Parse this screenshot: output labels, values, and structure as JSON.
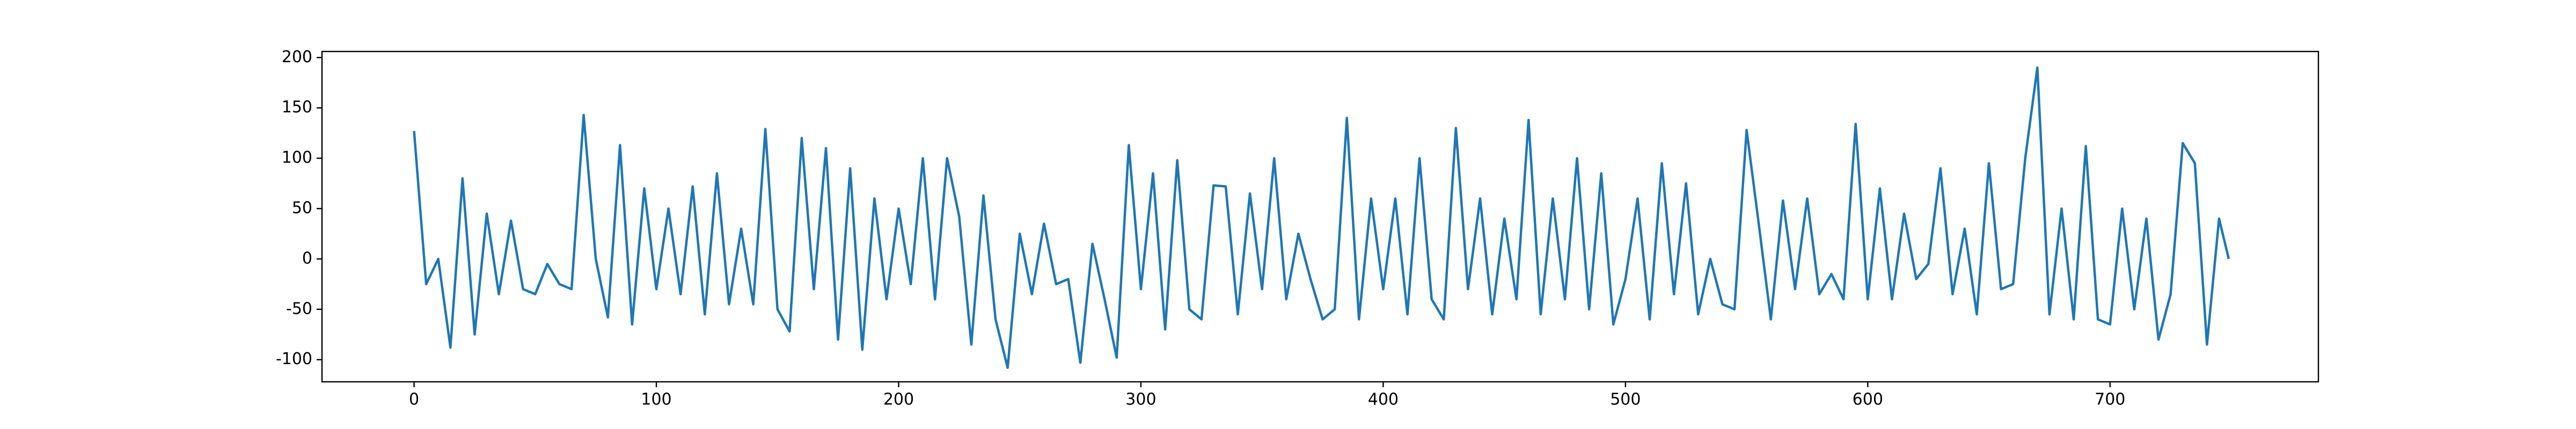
{
  "chart_data": {
    "type": "line",
    "x": [
      0,
      5,
      10,
      15,
      20,
      25,
      30,
      35,
      40,
      45,
      50,
      55,
      60,
      65,
      70,
      75,
      80,
      85,
      90,
      95,
      100,
      105,
      110,
      115,
      120,
      125,
      130,
      135,
      140,
      145,
      150,
      155,
      160,
      165,
      170,
      175,
      180,
      185,
      190,
      195,
      200,
      205,
      210,
      215,
      220,
      225,
      230,
      235,
      240,
      245,
      250,
      255,
      260,
      265,
      270,
      275,
      280,
      285,
      290,
      295,
      300,
      305,
      310,
      315,
      320,
      325,
      330,
      335,
      340,
      345,
      350,
      355,
      360,
      365,
      370,
      375,
      380,
      385,
      390,
      395,
      400,
      405,
      410,
      415,
      420,
      425,
      430,
      435,
      440,
      445,
      450,
      455,
      460,
      465,
      470,
      475,
      480,
      485,
      490,
      495,
      500,
      505,
      510,
      515,
      520,
      525,
      530,
      535,
      540,
      545,
      550,
      555,
      560,
      565,
      570,
      575,
      580,
      585,
      590,
      595,
      600,
      605,
      610,
      615,
      620,
      625,
      630,
      635,
      640,
      645,
      650,
      655,
      660,
      665,
      670,
      675,
      680,
      685,
      690,
      695,
      700,
      705,
      710,
      715,
      720,
      725,
      730,
      735,
      740,
      745,
      749
    ],
    "values": [
      127,
      -25,
      0,
      -88,
      80,
      -75,
      45,
      -35,
      38,
      -30,
      -35,
      -5,
      -25,
      -30,
      143,
      0,
      -58,
      113,
      -65,
      70,
      -30,
      50,
      -35,
      72,
      -55,
      85,
      -45,
      30,
      -45,
      129,
      -50,
      -72,
      120,
      -30,
      110,
      -80,
      90,
      -90,
      60,
      -40,
      50,
      -25,
      100,
      -40,
      100,
      42,
      -85,
      63,
      -60,
      -108,
      25,
      -35,
      35,
      -25,
      -20,
      -103,
      15,
      -40,
      -98,
      113,
      -30,
      85,
      -70,
      98,
      -50,
      -60,
      73,
      72,
      -55,
      65,
      -30,
      100,
      -40,
      25,
      -20,
      -60,
      -50,
      140,
      -60,
      60,
      -30,
      60,
      -55,
      100,
      -40,
      -60,
      130,
      -30,
      60,
      -55,
      40,
      -40,
      138,
      -55,
      60,
      -40,
      100,
      -50,
      85,
      -65,
      -20,
      60,
      -60,
      95,
      -35,
      75,
      -55,
      0,
      -45,
      -50,
      128,
      35,
      -60,
      58,
      -30,
      60,
      -35,
      -15,
      -40,
      134,
      -40,
      70,
      -40,
      45,
      -20,
      -5,
      90,
      -35,
      30,
      -55,
      95,
      -30,
      -25,
      100,
      190,
      -55,
      50,
      -60,
      112,
      -60,
      -65,
      50,
      -50,
      40,
      -80,
      -35,
      115,
      95,
      -85,
      40,
      0
    ],
    "color": "#1f77b4",
    "xlim": [
      -38,
      786
    ],
    "xticks": [
      0,
      100,
      200,
      300,
      400,
      500,
      600,
      700
    ],
    "ylim": [
      -122,
      206
    ],
    "yticks": [
      -100,
      -50,
      0,
      50,
      100,
      150,
      200
    ],
    "grid": false
  }
}
